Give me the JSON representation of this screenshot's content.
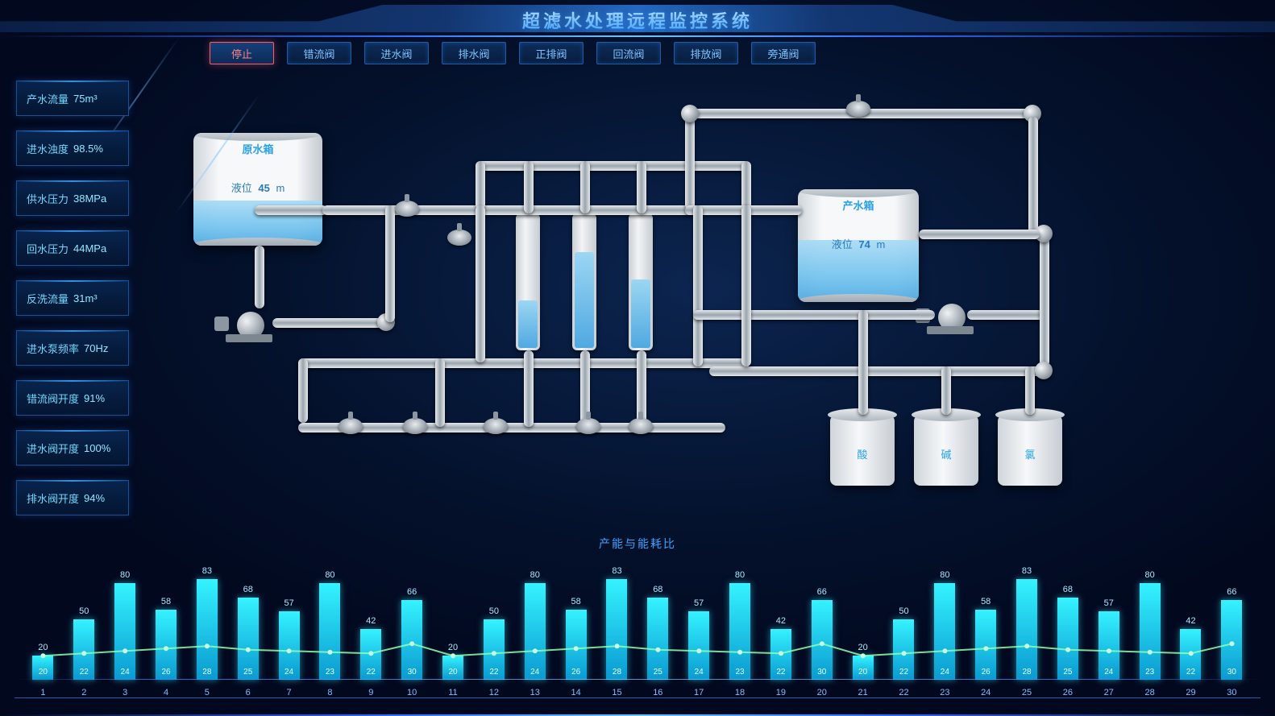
{
  "header": {
    "title": "超滤水处理远程监控系统"
  },
  "toolbar": {
    "buttons": [
      {
        "label": "停止",
        "active": true
      },
      {
        "label": "错流阀",
        "active": false
      },
      {
        "label": "进水阀",
        "active": false
      },
      {
        "label": "排水阀",
        "active": false
      },
      {
        "label": "正排阀",
        "active": false
      },
      {
        "label": "回流阀",
        "active": false
      },
      {
        "label": "排放阀",
        "active": false
      },
      {
        "label": "旁通阀",
        "active": false
      }
    ]
  },
  "metrics": [
    {
      "label": "产水流量",
      "value": "75m³"
    },
    {
      "label": "进水浊度",
      "value": "98.5%"
    },
    {
      "label": "供水压力",
      "value": "38MPa"
    },
    {
      "label": "回水压力",
      "value": "44MPa"
    },
    {
      "label": "反洗流量",
      "value": "31m³"
    },
    {
      "label": "进水泵频率",
      "value": "70Hz"
    },
    {
      "label": "错流阀开度",
      "value": "91%"
    },
    {
      "label": "进水阀开度",
      "value": "100%"
    },
    {
      "label": "排水阀开度",
      "value": "94%"
    }
  ],
  "tanks": {
    "source": {
      "title": "原水箱",
      "level_label": "液位",
      "level": 45,
      "unit": "m",
      "fill_pct": 40
    },
    "product": {
      "title": "产水箱",
      "level_label": "液位",
      "level": 74,
      "unit": "m",
      "fill_pct": 55
    }
  },
  "filters": [
    {
      "fill_pct": 35
    },
    {
      "fill_pct": 70
    },
    {
      "fill_pct": 50
    }
  ],
  "chem_tanks": [
    {
      "label": "酸"
    },
    {
      "label": "碱"
    },
    {
      "label": "氯"
    }
  ],
  "chart": {
    "title": "产能与能耗比",
    "ymax": 100,
    "bar_color_top": "#35f3ff",
    "bar_color_bottom": "#0a9ad1",
    "line_color": "#8fffb0",
    "data": [
      {
        "x": 1,
        "bar": 20,
        "line": 20
      },
      {
        "x": 2,
        "bar": 50,
        "line": 22
      },
      {
        "x": 3,
        "bar": 80,
        "line": 24
      },
      {
        "x": 4,
        "bar": 58,
        "line": 26
      },
      {
        "x": 5,
        "bar": 83,
        "line": 28
      },
      {
        "x": 6,
        "bar": 68,
        "line": 25
      },
      {
        "x": 7,
        "bar": 57,
        "line": 24
      },
      {
        "x": 8,
        "bar": 80,
        "line": 23
      },
      {
        "x": 9,
        "bar": 42,
        "line": 22
      },
      {
        "x": 10,
        "bar": 66,
        "line": 30
      },
      {
        "x": 11,
        "bar": 20,
        "line": 20
      },
      {
        "x": 12,
        "bar": 50,
        "line": 22
      },
      {
        "x": 13,
        "bar": 80,
        "line": 24
      },
      {
        "x": 14,
        "bar": 58,
        "line": 26
      },
      {
        "x": 15,
        "bar": 83,
        "line": 28
      },
      {
        "x": 16,
        "bar": 68,
        "line": 25
      },
      {
        "x": 17,
        "bar": 57,
        "line": 24
      },
      {
        "x": 18,
        "bar": 80,
        "line": 23
      },
      {
        "x": 19,
        "bar": 42,
        "line": 22
      },
      {
        "x": 20,
        "bar": 66,
        "line": 30
      },
      {
        "x": 21,
        "bar": 20,
        "line": 20
      },
      {
        "x": 22,
        "bar": 50,
        "line": 22
      },
      {
        "x": 23,
        "bar": 80,
        "line": 24
      },
      {
        "x": 24,
        "bar": 58,
        "line": 26
      },
      {
        "x": 25,
        "bar": 83,
        "line": 28
      },
      {
        "x": 26,
        "bar": 68,
        "line": 25
      },
      {
        "x": 27,
        "bar": 57,
        "line": 24
      },
      {
        "x": 28,
        "bar": 80,
        "line": 23
      },
      {
        "x": 29,
        "bar": 42,
        "line": 22
      },
      {
        "x": 30,
        "bar": 66,
        "line": 30
      }
    ]
  }
}
